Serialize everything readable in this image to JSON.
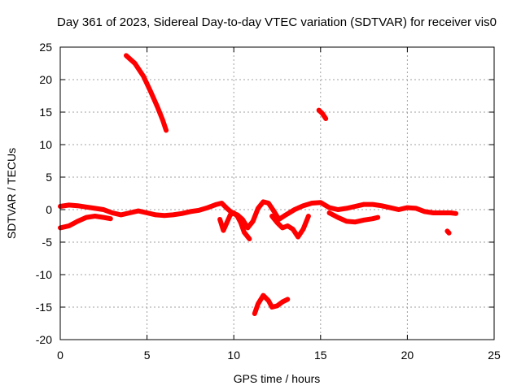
{
  "chart_data": {
    "type": "scatter",
    "title": "Day 361 of 2023, Sidereal Day-to-day VTEC variation (SDTVAR) for receiver vis0",
    "xlabel": "GPS time / hours",
    "ylabel": "SDTVAR / TECUs",
    "xlim": [
      0,
      25
    ],
    "ylim": [
      -20,
      25
    ],
    "xticks": [
      0,
      5,
      10,
      15,
      20,
      25
    ],
    "yticks": [
      -20,
      -15,
      -10,
      -5,
      0,
      5,
      10,
      15,
      20,
      25
    ],
    "grid": true,
    "marker_color": "#ff0000",
    "series": [
      {
        "name": "track-upper-left",
        "x": [
          3.8,
          4.3,
          4.8,
          5.2,
          5.6,
          5.9,
          6.1
        ],
        "y": [
          23.7,
          22.5,
          20.5,
          18.2,
          15.8,
          13.8,
          12.2
        ]
      },
      {
        "name": "track-upper-right",
        "x": [
          14.9,
          15.1,
          15.3
        ],
        "y": [
          15.3,
          14.8,
          14.0
        ]
      },
      {
        "name": "track-main-upper",
        "x": [
          0,
          0.5,
          1,
          1.5,
          2,
          2.5,
          3,
          3.5,
          4,
          4.5,
          5,
          5.5,
          6,
          6.5,
          7,
          7.5,
          8,
          8.5,
          9,
          9.3,
          9.6,
          9.9,
          10.2,
          10.5,
          10.8,
          11.1,
          11.4,
          11.7,
          12.0,
          12.3,
          12.6,
          13.0,
          13.5,
          14.0,
          14.5,
          15.0,
          15.5,
          16.0,
          16.5,
          17.0,
          17.5,
          18.0,
          18.5,
          19.0,
          19.5,
          20.0,
          20.5,
          21.0,
          21.5,
          22.0,
          22.5,
          22.8
        ],
        "y": [
          0.5,
          0.7,
          0.6,
          0.4,
          0.2,
          0.0,
          -0.5,
          -0.8,
          -0.5,
          -0.2,
          -0.5,
          -0.8,
          -0.9,
          -0.8,
          -0.6,
          -0.3,
          -0.1,
          0.3,
          0.8,
          1.0,
          0.2,
          -0.5,
          -0.8,
          -1.5,
          -2.8,
          -1.8,
          0.2,
          1.2,
          1.0,
          -0.2,
          -1.5,
          -0.8,
          0.0,
          0.6,
          1.0,
          1.1,
          0.3,
          0.0,
          0.2,
          0.5,
          0.8,
          0.8,
          0.6,
          0.3,
          0.0,
          0.3,
          0.2,
          -0.3,
          -0.5,
          -0.5,
          -0.5,
          -0.6
        ]
      },
      {
        "name": "track-main-lower",
        "x": [
          0,
          0.5,
          1.0,
          1.5,
          2.0,
          2.5,
          2.9
        ],
        "y": [
          -2.8,
          -2.5,
          -1.8,
          -1.2,
          -1.0,
          -1.2,
          -1.4
        ]
      },
      {
        "name": "track-mid-dip",
        "x": [
          9.2,
          9.4,
          9.6,
          9.8,
          10.0,
          10.2,
          10.4,
          10.6,
          10.9
        ],
        "y": [
          -1.5,
          -3.2,
          -2.0,
          -0.8,
          -0.5,
          -1.0,
          -2.0,
          -3.5,
          -4.5
        ]
      },
      {
        "name": "track-mid-right",
        "x": [
          12.2,
          12.5,
          12.8,
          13.1,
          13.4,
          13.7,
          14.0,
          14.3
        ],
        "y": [
          -1.0,
          -2.0,
          -2.8,
          -2.5,
          -3.0,
          -4.2,
          -3.0,
          -1.0
        ]
      },
      {
        "name": "track-right-lower",
        "x": [
          15.5,
          16.0,
          16.5,
          17.0,
          17.5,
          18.0,
          18.3
        ],
        "y": [
          -0.5,
          -1.2,
          -1.8,
          -1.9,
          -1.6,
          -1.4,
          -1.2
        ]
      },
      {
        "name": "track-bottom",
        "x": [
          11.2,
          11.4,
          11.7,
          12.0,
          12.2,
          12.5,
          12.8,
          13.1
        ],
        "y": [
          -16.0,
          -14.5,
          -13.2,
          -14.0,
          -15.0,
          -14.8,
          -14.2,
          -13.8
        ]
      },
      {
        "name": "track-outlier",
        "x": [
          22.3,
          22.4
        ],
        "y": [
          -3.3,
          -3.6
        ]
      }
    ]
  }
}
